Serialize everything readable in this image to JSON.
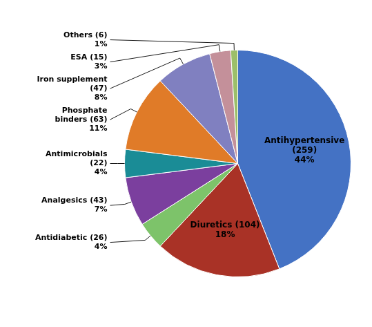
{
  "chart_data": {
    "type": "pie",
    "values": [
      44,
      18,
      4,
      7,
      4,
      11,
      8,
      3,
      1
    ],
    "value_labels": [
      "Antihypertensive\n(259)\n44%",
      "Diuretics (104)\n18%",
      "Antidiabetic (26)\n4%",
      "Analgesics (43)\n7%",
      "Antimicrobials\n(22)\n4%",
      "Phosphate\nbinders (63)\n11%",
      "Iron supplement\n(47)\n8%",
      "ESA (15)\n3%",
      "Others (6)\n1%"
    ],
    "colors": [
      "#4472C4",
      "#A93226",
      "#7DC36A",
      "#7B3F9E",
      "#1A8C96",
      "#E07B28",
      "#8080C0",
      "#C4909A",
      "#9CBF6A"
    ],
    "data_labels": true
  }
}
